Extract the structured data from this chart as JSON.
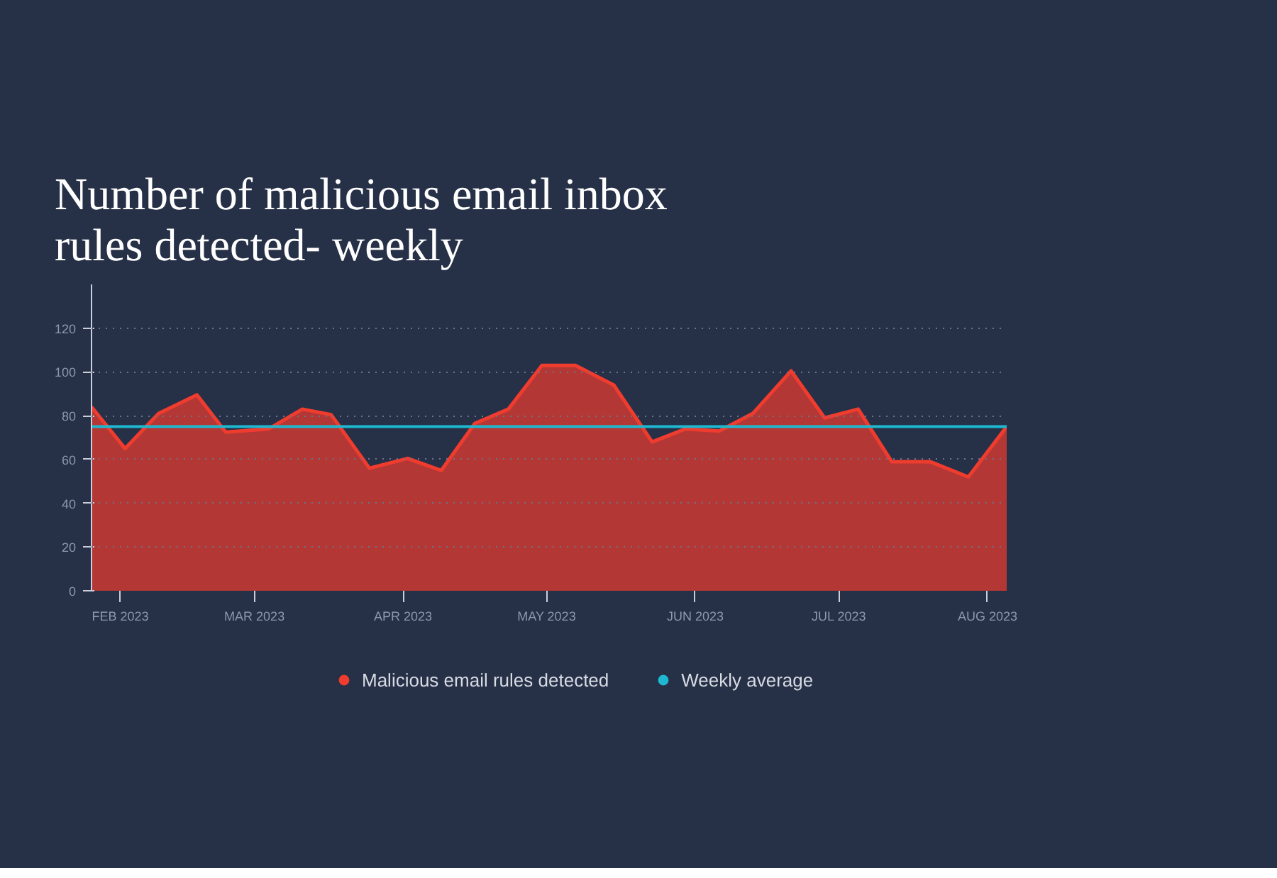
{
  "chart_data": {
    "type": "area",
    "title": "Number of malicious email inbox rules detected- weekly",
    "x": [
      "2023-01-26",
      "2023-02-02",
      "2023-02-09",
      "2023-02-17",
      "2023-02-23",
      "2023-03-04",
      "2023-03-11",
      "2023-03-17",
      "2023-03-25",
      "2023-04-02",
      "2023-04-09",
      "2023-04-16",
      "2023-04-23",
      "2023-04-30",
      "2023-05-07",
      "2023-05-15",
      "2023-05-23",
      "2023-05-30",
      "2023-06-06",
      "2023-06-13",
      "2023-06-21",
      "2023-06-28",
      "2023-07-05",
      "2023-07-12",
      "2023-07-20",
      "2023-07-28",
      "2023-08-05"
    ],
    "series": [
      {
        "name": "Malicious email rules detected",
        "color": "#f03c2e",
        "values": [
          84,
          65,
          81,
          89.5,
          72.5,
          74,
          83,
          80.5,
          56,
          60.5,
          55,
          76.5,
          83,
          103,
          103,
          94,
          68,
          74,
          73,
          81,
          100.5,
          79,
          83,
          59,
          59,
          52,
          75
        ]
      }
    ],
    "ref_lines": [
      {
        "axis": "y",
        "value": 75,
        "label": "Weekly average",
        "color": "#1eb8d0"
      }
    ],
    "ylim": [
      0,
      140
    ],
    "yticks": [
      0,
      20,
      40,
      60,
      80,
      100,
      120
    ],
    "xlim": [
      "2023-01-26",
      "2023-08-05"
    ],
    "xticks": [
      {
        "value": "2023-02-01",
        "label": "FEB 2023"
      },
      {
        "value": "2023-03-01",
        "label": "MAR 2023"
      },
      {
        "value": "2023-04-01",
        "label": "APR 2023"
      },
      {
        "value": "2023-05-01",
        "label": "MAY 2023"
      },
      {
        "value": "2023-06-01",
        "label": "JUN 2023"
      },
      {
        "value": "2023-07-01",
        "label": "JUL 2023"
      },
      {
        "value": "2023-08-01",
        "label": "AUG 2023"
      }
    ],
    "grid": "y",
    "legend": "bottom"
  }
}
